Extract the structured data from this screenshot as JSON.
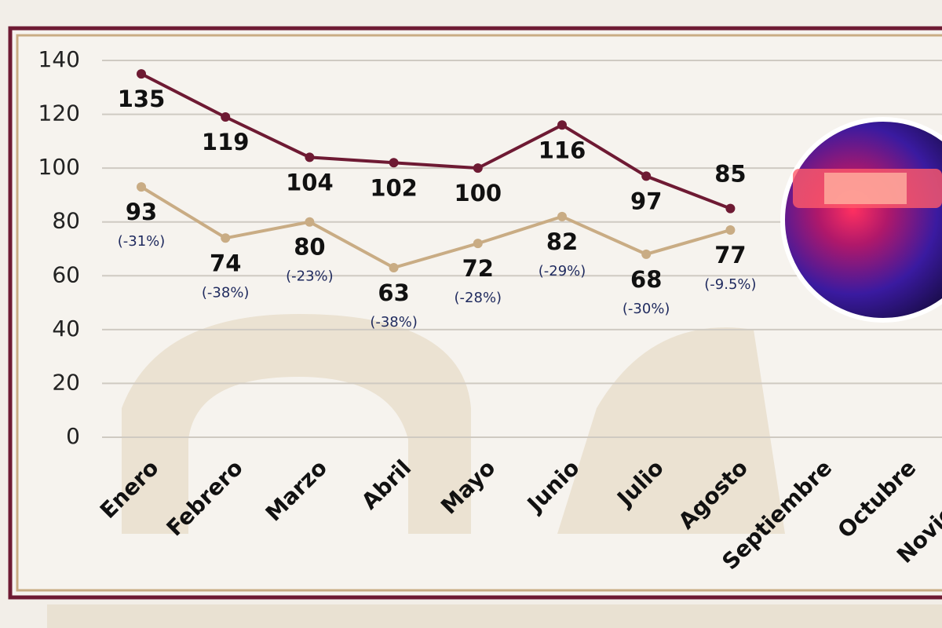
{
  "chart_data": {
    "type": "line",
    "categories": [
      "Enero",
      "Febrero",
      "Marzo",
      "Abril",
      "Mayo",
      "Junio",
      "Julio",
      "Agosto",
      "Septiembre",
      "Octubre",
      "Noviembre"
    ],
    "series": [
      {
        "color": "#6e1a33",
        "values": [
          135,
          119,
          104,
          102,
          100,
          116,
          97,
          85,
          null,
          null,
          null
        ]
      },
      {
        "color": "#c9ac84",
        "values": [
          93,
          74,
          80,
          63,
          72,
          82,
          68,
          77,
          null,
          null,
          null
        ],
        "annotations": [
          "(-31%)",
          "(-38%)",
          "(-23%)",
          "(-38%)",
          "(-28%)",
          "(-29%)",
          "(-30%)",
          "(-9.5%)"
        ]
      }
    ],
    "ylim": [
      0,
      140
    ],
    "yticks": [
      0,
      20,
      40,
      60,
      80,
      100,
      120,
      140
    ],
    "grid": true
  }
}
